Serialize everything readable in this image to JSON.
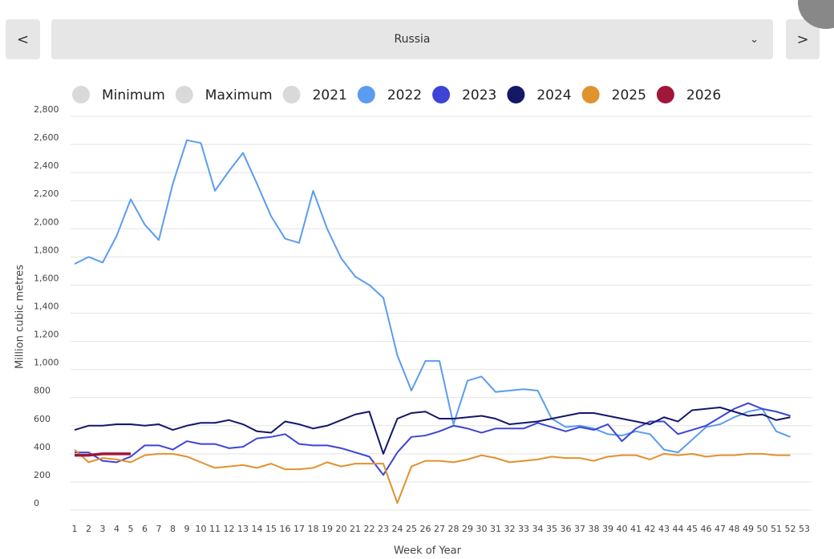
{
  "header": {
    "selected": "Russia",
    "prev": "<",
    "next": ">"
  },
  "chart_data": {
    "type": "line",
    "y_label": "Million cubic metres",
    "x_label": "Week of Year",
    "x": [
      1,
      2,
      3,
      4,
      5,
      6,
      7,
      8,
      9,
      10,
      11,
      12,
      13,
      14,
      15,
      16,
      17,
      18,
      19,
      20,
      21,
      22,
      23,
      24,
      25,
      26,
      27,
      28,
      29,
      30,
      31,
      32,
      33,
      34,
      35,
      36,
      37,
      38,
      39,
      40,
      41,
      42,
      43,
      44,
      45,
      46,
      47,
      48,
      49,
      50,
      51,
      52
    ],
    "xlim": [
      1,
      53
    ],
    "xticks": [
      1,
      2,
      3,
      4,
      5,
      6,
      7,
      8,
      9,
      10,
      11,
      12,
      13,
      14,
      15,
      16,
      17,
      18,
      19,
      20,
      21,
      22,
      23,
      24,
      25,
      26,
      27,
      28,
      29,
      30,
      31,
      32,
      33,
      34,
      35,
      36,
      37,
      38,
      39,
      40,
      41,
      42,
      43,
      44,
      45,
      46,
      47,
      48,
      49,
      50,
      51,
      52,
      53
    ],
    "ylim": [
      0,
      2800
    ],
    "yticks": [
      0,
      200,
      400,
      600,
      800,
      {
        "value": 1000,
        "label": "1,000"
      },
      {
        "value": 1200,
        "label": "1,200"
      },
      {
        "value": 1400,
        "label": "1,400"
      },
      {
        "value": 1600,
        "label": "1,600"
      },
      {
        "value": 1800,
        "label": "1,800"
      },
      {
        "value": 2000,
        "label": "2,000"
      },
      {
        "value": 2200,
        "label": "2,200"
      },
      {
        "value": 2400,
        "label": "2,400"
      },
      {
        "value": 2600,
        "label": "2,600"
      },
      {
        "value": 2800,
        "label": "2,800"
      }
    ],
    "grid": true,
    "hidden_series": [
      {
        "name": "Minimum",
        "color": "#d9d9d9"
      },
      {
        "name": "Maximum",
        "color": "#d9d9d9"
      },
      {
        "name": "2021",
        "color": "#d9d9d9"
      }
    ],
    "series": [
      {
        "name": "2022",
        "color": "#5b9cf0",
        "values": [
          1750,
          1800,
          1760,
          1950,
          2210,
          2030,
          1920,
          2320,
          2630,
          2610,
          2270,
          2410,
          2540,
          2320,
          2090,
          1930,
          1900,
          2270,
          2000,
          1790,
          1660,
          1600,
          1510,
          1100,
          850,
          1060,
          1060,
          610,
          920,
          950,
          840,
          850,
          860,
          850,
          650,
          590,
          600,
          580,
          540,
          530,
          560,
          540,
          430,
          410,
          500,
          590,
          610,
          660,
          700,
          720,
          560,
          520
        ]
      },
      {
        "name": "2023",
        "color": "#3d44d6",
        "values": [
          410,
          410,
          350,
          340,
          380,
          460,
          460,
          430,
          490,
          470,
          470,
          440,
          450,
          510,
          520,
          540,
          470,
          460,
          460,
          440,
          410,
          380,
          250,
          410,
          520,
          530,
          560,
          600,
          580,
          550,
          580,
          580,
          580,
          620,
          590,
          560,
          590,
          570,
          610,
          490,
          580,
          630,
          630,
          540,
          570,
          600,
          660,
          720,
          760,
          720,
          700,
          670
        ]
      },
      {
        "name": "2024",
        "color": "#141866",
        "values": [
          570,
          600,
          600,
          610,
          610,
          600,
          610,
          570,
          600,
          620,
          620,
          640,
          610,
          560,
          550,
          630,
          610,
          580,
          600,
          640,
          680,
          700,
          400,
          650,
          690,
          700,
          650,
          650,
          660,
          670,
          650,
          610,
          620,
          630,
          650,
          670,
          690,
          690,
          670,
          650,
          630,
          610,
          660,
          630,
          710,
          720,
          730,
          700,
          670,
          680,
          640,
          660
        ]
      },
      {
        "name": "2025",
        "color": "#e0922f",
        "values": [
          430,
          340,
          370,
          360,
          340,
          390,
          400,
          400,
          380,
          340,
          300,
          310,
          320,
          300,
          330,
          290,
          290,
          300,
          340,
          310,
          330,
          330,
          330,
          50,
          310,
          350,
          350,
          340,
          360,
          390,
          370,
          340,
          350,
          360,
          380,
          370,
          370,
          350,
          380,
          390,
          390,
          360,
          400,
          390,
          400,
          380,
          390,
          390,
          400,
          400,
          390,
          390
        ]
      },
      {
        "name": "2026",
        "color": "#a0173a",
        "values": [
          390,
          390,
          400,
          400,
          400,
          null,
          null,
          null,
          null,
          null,
          null,
          null,
          null,
          null,
          null,
          null,
          null,
          null,
          null,
          null,
          null,
          null,
          null,
          null,
          null,
          null,
          null,
          null,
          null,
          null,
          null,
          null,
          null,
          null,
          null,
          null,
          null,
          null,
          null,
          null,
          null,
          null,
          null,
          null,
          null,
          null,
          null,
          null,
          null,
          null,
          null,
          null
        ]
      }
    ]
  }
}
